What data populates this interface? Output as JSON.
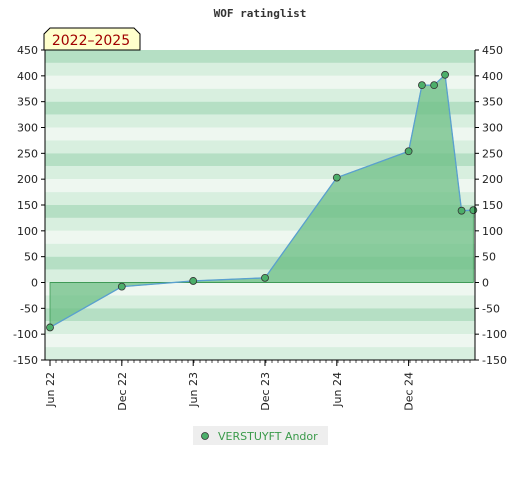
{
  "chart_data": {
    "type": "area",
    "title": "WOF ratinglist",
    "badge": "2022–2025",
    "ylim": [
      -150,
      450
    ],
    "yticks": [
      450,
      400,
      350,
      300,
      250,
      200,
      150,
      100,
      50,
      0,
      -50,
      -100,
      -150
    ],
    "xlim": [
      "2022-06-01",
      "2025-06-01"
    ],
    "xticks": [
      {
        "label": "Jun 22",
        "date": "2022-06-01"
      },
      {
        "label": "Dec 22",
        "date": "2022-12-01"
      },
      {
        "label": "Jun 23",
        "date": "2023-06-01"
      },
      {
        "label": "Dec 23",
        "date": "2023-12-01"
      },
      {
        "label": "Jun 24",
        "date": "2024-06-01"
      },
      {
        "label": "Dec 24",
        "date": "2024-12-01"
      }
    ],
    "series": [
      {
        "name": "VERSTUYFT Andor",
        "points": [
          {
            "x": "2022-06-01",
            "y": -87
          },
          {
            "x": "2022-12-01",
            "y": -8
          },
          {
            "x": "2023-06-01",
            "y": 3
          },
          {
            "x": "2023-12-01",
            "y": 9
          },
          {
            "x": "2024-06-01",
            "y": 203
          },
          {
            "x": "2024-12-01",
            "y": 254
          },
          {
            "x": "2025-01-04",
            "y": 382
          },
          {
            "x": "2025-02-04",
            "y": 382
          },
          {
            "x": "2025-03-04",
            "y": 402
          },
          {
            "x": "2025-04-15",
            "y": 139
          },
          {
            "x": "2025-05-15",
            "y": 140
          }
        ]
      }
    ],
    "colors": {
      "band_dark": "#b5dfc4",
      "band_light": "#eef7f0",
      "band_mid": "#d8efdf",
      "fill": "#6ebf85",
      "line": "#5aa0d0",
      "marker": "#4caf6a",
      "badge_bg": "#ffffcc"
    },
    "grid": true,
    "legend_position": "bottom"
  }
}
